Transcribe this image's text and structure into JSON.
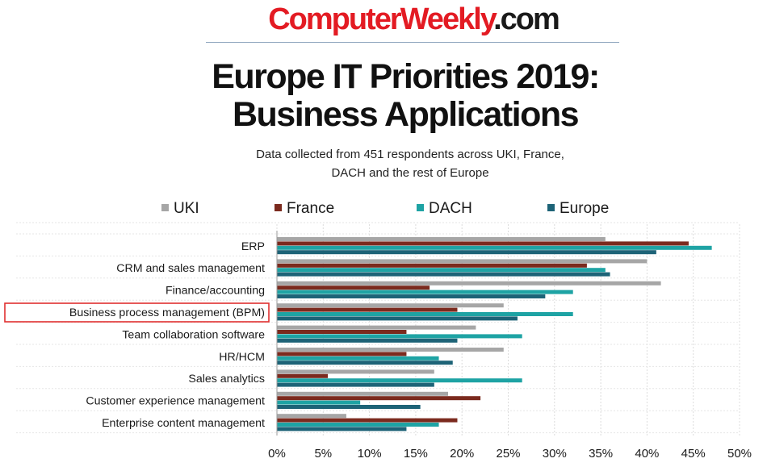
{
  "logo": {
    "brand": "ComputerWeekly",
    "suffix": ".com"
  },
  "header": {
    "title_line1": "Europe IT Priorities 2019:",
    "title_line2": "Business Applications",
    "subtitle_line1": "Data collected from 451 respondents across UKI, France,",
    "subtitle_line2": "DACH and the rest of Europe"
  },
  "highlight_color": "#e03030",
  "chart_data": {
    "type": "bar",
    "orientation": "horizontal",
    "title": "Europe IT Priorities 2019: Business Applications",
    "xlabel": "",
    "ylabel": "",
    "xlim": [
      0,
      50
    ],
    "x_ticks": [
      "0%",
      "5%",
      "10%",
      "15%",
      "20%",
      "25%",
      "30%",
      "35%",
      "40%",
      "45%",
      "50%"
    ],
    "grid": true,
    "legend_position": "top",
    "highlighted_category": "Business process management (BPM)",
    "categories": [
      "ERP",
      "CRM and sales management",
      "Finance/accounting",
      "Business process management (BPM)",
      "Team collaboration software",
      "HR/HCM",
      "Sales analytics",
      "Customer experience management",
      "Enterprise content management"
    ],
    "series": [
      {
        "name": "UKI",
        "color": "#a6a6a6",
        "values": [
          35.5,
          40,
          41.5,
          24.5,
          21.5,
          24.5,
          17,
          18.5,
          7.5
        ]
      },
      {
        "name": "France",
        "color": "#7b2a1e",
        "values": [
          44.5,
          33.5,
          16.5,
          19.5,
          14,
          14,
          5.5,
          22,
          19.5
        ]
      },
      {
        "name": "DACH",
        "color": "#1ea3a4",
        "values": [
          47,
          35.5,
          32,
          32,
          26.5,
          17.5,
          26.5,
          9,
          17.5
        ]
      },
      {
        "name": "Europe",
        "color": "#1d6377",
        "values": [
          41,
          36,
          29,
          26,
          19.5,
          19,
          17,
          15.5,
          14
        ]
      }
    ]
  }
}
